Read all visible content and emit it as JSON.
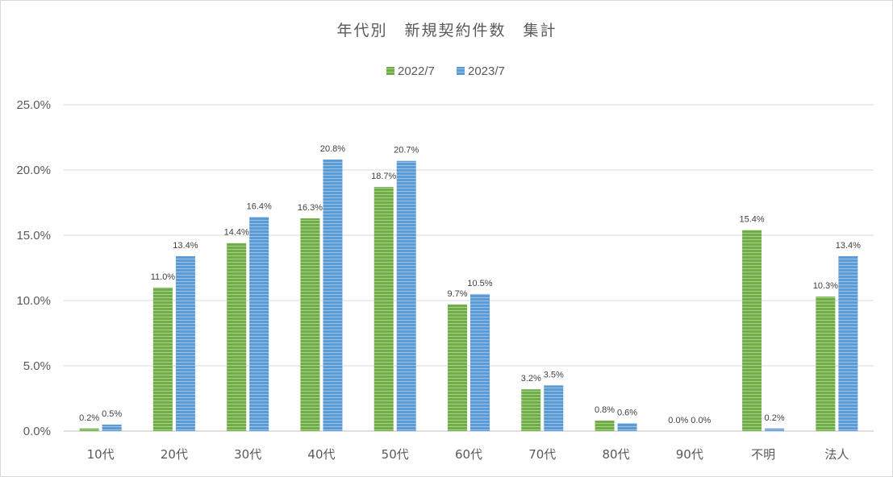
{
  "chart_data": {
    "type": "bar",
    "title": "年代別　新規契約件数　集計",
    "categories": [
      "10代",
      "20代",
      "30代",
      "40代",
      "50代",
      "60代",
      "70代",
      "80代",
      "90代",
      "不明",
      "法人"
    ],
    "series": [
      {
        "name": "2022/7",
        "color": "#70ad47",
        "values": [
          0.2,
          11.0,
          14.4,
          16.3,
          18.7,
          9.7,
          3.2,
          0.8,
          0.0,
          15.4,
          10.3
        ],
        "labels": [
          "0.2%",
          "11.0%",
          "14.4%",
          "16.3%",
          "18.7%",
          "9.7%",
          "3.2%",
          "0.8%",
          "0.0%",
          "15.4%",
          "10.3%"
        ]
      },
      {
        "name": "2023/7",
        "color": "#5b9bd5",
        "values": [
          0.5,
          13.4,
          16.4,
          20.8,
          20.7,
          10.5,
          3.5,
          0.6,
          0.0,
          0.2,
          13.4
        ],
        "labels": [
          "0.5%",
          "13.4%",
          "16.4%",
          "20.8%",
          "20.7%",
          "10.5%",
          "3.5%",
          "0.6%",
          "0.0%",
          "0.2%",
          "13.4%"
        ]
      }
    ],
    "ylim": [
      0,
      25
    ],
    "yticks": [
      "0.0%",
      "5.0%",
      "10.0%",
      "15.0%",
      "20.0%",
      "25.0%"
    ],
    "ytick_values": [
      0,
      5,
      10,
      15,
      20,
      25
    ],
    "grid": true,
    "legend_position": "top"
  }
}
